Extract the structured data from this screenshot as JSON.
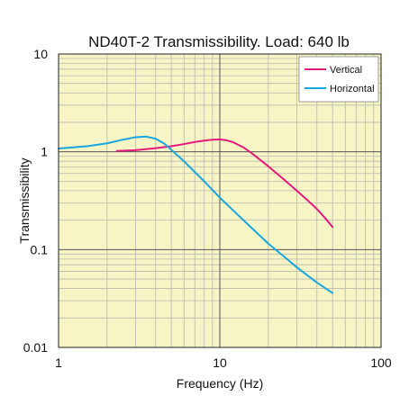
{
  "chart_data": {
    "type": "line",
    "title": "ND40T-2 Transmissibility. Load: 640 lb",
    "xlabel": "Frequency (Hz)",
    "ylabel": "Transmissibility",
    "x_scale": "log",
    "y_scale": "log",
    "xlim": [
      1,
      100
    ],
    "ylim": [
      0.01,
      10
    ],
    "x_ticks": [
      {
        "value": 1,
        "label": "1"
      },
      {
        "value": 10,
        "label": "10"
      },
      {
        "value": 100,
        "label": "100"
      }
    ],
    "y_ticks": [
      {
        "value": 10,
        "label": "10"
      },
      {
        "value": 1,
        "label": "1"
      },
      {
        "value": 0.1,
        "label": "0.1"
      },
      {
        "value": 0.01,
        "label": "0.01"
      }
    ],
    "grid": true,
    "legend_position": "top-right",
    "background_color": "#f7f4c6",
    "grid_color": "#b9b9b0",
    "series": [
      {
        "name": "Vertical",
        "color": "#e4197c",
        "points": [
          [
            2.3,
            1.02
          ],
          [
            3.0,
            1.04
          ],
          [
            4.0,
            1.09
          ],
          [
            5.0,
            1.14
          ],
          [
            6.0,
            1.2
          ],
          [
            7.0,
            1.26
          ],
          [
            8.0,
            1.3
          ],
          [
            9.0,
            1.33
          ],
          [
            10.0,
            1.34
          ],
          [
            11.0,
            1.31
          ],
          [
            12.0,
            1.26
          ],
          [
            14.0,
            1.11
          ],
          [
            16.0,
            0.95
          ],
          [
            20.0,
            0.71
          ],
          [
            25.0,
            0.52
          ],
          [
            30.0,
            0.4
          ],
          [
            35.0,
            0.32
          ],
          [
            40.0,
            0.26
          ],
          [
            45.0,
            0.21
          ],
          [
            50.0,
            0.17
          ]
        ]
      },
      {
        "name": "Horizontal",
        "color": "#1aa6df",
        "points": [
          [
            1.0,
            1.08
          ],
          [
            1.5,
            1.14
          ],
          [
            2.0,
            1.22
          ],
          [
            2.5,
            1.33
          ],
          [
            3.0,
            1.41
          ],
          [
            3.5,
            1.43
          ],
          [
            4.0,
            1.36
          ],
          [
            4.5,
            1.22
          ],
          [
            5.0,
            1.05
          ],
          [
            6.0,
            0.8
          ],
          [
            7.0,
            0.62
          ],
          [
            8.0,
            0.5
          ],
          [
            10.0,
            0.34
          ],
          [
            12.0,
            0.255
          ],
          [
            15.0,
            0.18
          ],
          [
            20.0,
            0.115
          ],
          [
            25.0,
            0.085
          ],
          [
            30.0,
            0.066
          ],
          [
            40.0,
            0.046
          ],
          [
            50.0,
            0.036
          ]
        ]
      }
    ]
  }
}
